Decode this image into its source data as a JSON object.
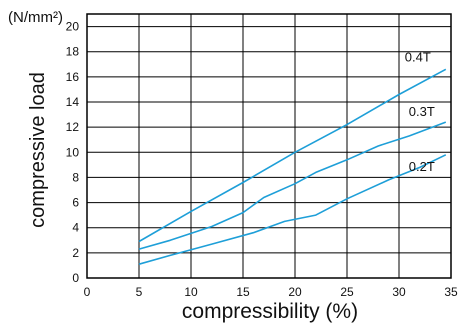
{
  "chart_data": {
    "type": "line",
    "title": "",
    "xlabel": "compressibility (%)",
    "ylabel": "compressive load",
    "yunit": "(N/mm²)",
    "xlim": [
      0,
      35
    ],
    "ylim": [
      0,
      21
    ],
    "xticks": [
      0,
      5,
      10,
      15,
      20,
      25,
      30,
      35
    ],
    "yticks": [
      0,
      2,
      4,
      6,
      8,
      10,
      12,
      14,
      16,
      18,
      20
    ],
    "grid": true,
    "line_color": "#1e9fd8",
    "series": [
      {
        "name": "0.4T",
        "x": [
          5,
          10,
          15,
          20,
          25,
          30,
          34.5
        ],
        "y": [
          2.9,
          5.3,
          7.6,
          10.0,
          12.2,
          14.6,
          16.6
        ]
      },
      {
        "name": "0.3T",
        "x": [
          5,
          8,
          12,
          15,
          17,
          20,
          22,
          25,
          28,
          31,
          34.5
        ],
        "y": [
          2.3,
          3.0,
          4.1,
          5.2,
          6.4,
          7.5,
          8.4,
          9.4,
          10.5,
          11.3,
          12.4
        ]
      },
      {
        "name": "0.2T",
        "x": [
          5,
          8,
          12,
          16,
          19,
          22,
          25,
          29,
          32,
          34.5
        ],
        "y": [
          1.1,
          1.8,
          2.7,
          3.6,
          4.5,
          5.0,
          6.3,
          7.8,
          8.8,
          9.8
        ]
      }
    ]
  }
}
